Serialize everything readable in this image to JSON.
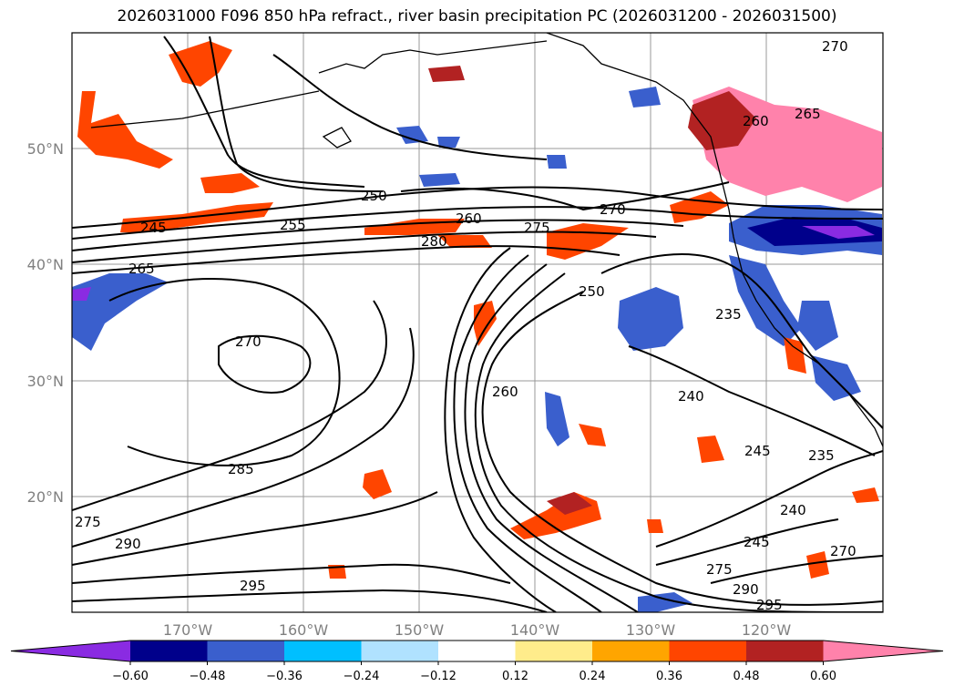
{
  "title": "2026031000 F096 850 hPa refract., river basin precipitation PC (2026031200 - 2026031500)",
  "latitude_labels": [
    "50°N",
    "40°N",
    "30°N",
    "20°N"
  ],
  "longitude_labels": [
    "170°W",
    "160°W",
    "150°W",
    "140°W",
    "130°W",
    "120°W"
  ],
  "contour_labels": [
    "270",
    "260",
    "265",
    "250",
    "245",
    "255",
    "260",
    "275",
    "270",
    "280",
    "265",
    "250",
    "270",
    "235",
    "240",
    "260",
    "285",
    "245",
    "235",
    "240",
    "290",
    "270",
    "245",
    "275",
    "295",
    "290",
    "295",
    "275"
  ],
  "colorbar": {
    "ticks": [
      "−0.60",
      "−0.48",
      "−0.36",
      "−0.24",
      "−0.12",
      "0.12",
      "0.24",
      "0.36",
      "0.48",
      "0.60"
    ],
    "colors": [
      "#8a2be2",
      "#00008b",
      "#3a5fcd",
      "#00bfff",
      "#b0e2ff",
      "#ffffff",
      "#ffec8b",
      "#ffa500",
      "#ff4500",
      "#b22222",
      "#ff82ab"
    ]
  }
}
